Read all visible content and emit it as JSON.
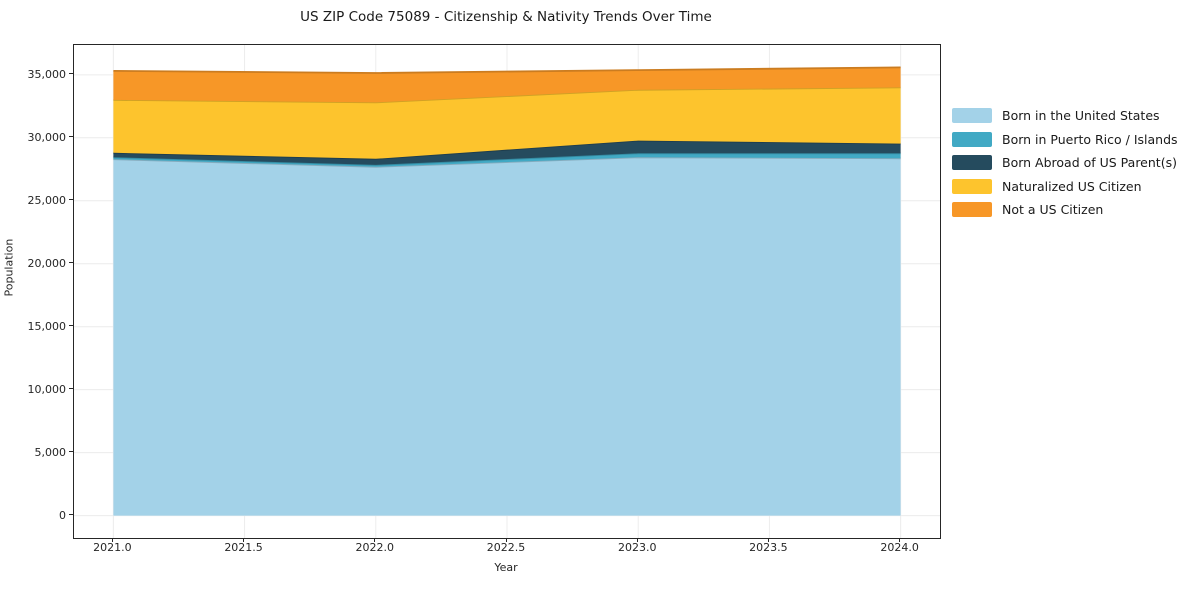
{
  "title": "US ZIP Code 75089 - Citizenship & Nativity Trends Over Time",
  "chart_data": {
    "type": "area",
    "stacked": true,
    "title": "US ZIP Code 75089 - Citizenship & Nativity Trends Over Time",
    "xlabel": "Year",
    "ylabel": "Population",
    "x": [
      2021,
      2022,
      2023,
      2024
    ],
    "series": [
      {
        "name": "Born in the United States",
        "color": "#a3d2e8",
        "values": [
          28300,
          27700,
          28450,
          28370
        ]
      },
      {
        "name": "Born in Puerto Rico / Islands",
        "color": "#41a9c4",
        "values": [
          160,
          150,
          320,
          400
        ]
      },
      {
        "name": "Born Abroad of US Parent(s)",
        "color": "#254b5e",
        "values": [
          350,
          480,
          1010,
          770
        ]
      },
      {
        "name": "Naturalized US Citizen",
        "color": "#fdc42d",
        "values": [
          4200,
          4480,
          4030,
          4460
        ]
      },
      {
        "name": "Not a US Citizen",
        "color": "#f79727",
        "values": [
          2300,
          2340,
          1570,
          1590
        ]
      }
    ],
    "totals": [
      35310,
      35150,
      35380,
      35590
    ],
    "xlim": [
      2020.85,
      2024.15
    ],
    "ylim": [
      -1780,
      37370
    ],
    "x_ticks": {
      "values": [
        2021.0,
        2021.5,
        2022.0,
        2022.5,
        2023.0,
        2023.5,
        2024.0
      ],
      "labels": [
        "2021.0",
        "2021.5",
        "2022.0",
        "2022.5",
        "2023.0",
        "2023.5",
        "2024.0"
      ]
    },
    "y_ticks": {
      "values": [
        0,
        5000,
        10000,
        15000,
        20000,
        25000,
        30000,
        35000
      ],
      "labels": [
        "0",
        "5,000",
        "10,000",
        "15,000",
        "20,000",
        "25,000",
        "30,000",
        "35,000"
      ]
    },
    "grid": true,
    "grid_color": "#ececec",
    "legend_position": "right of plot, frameless"
  }
}
